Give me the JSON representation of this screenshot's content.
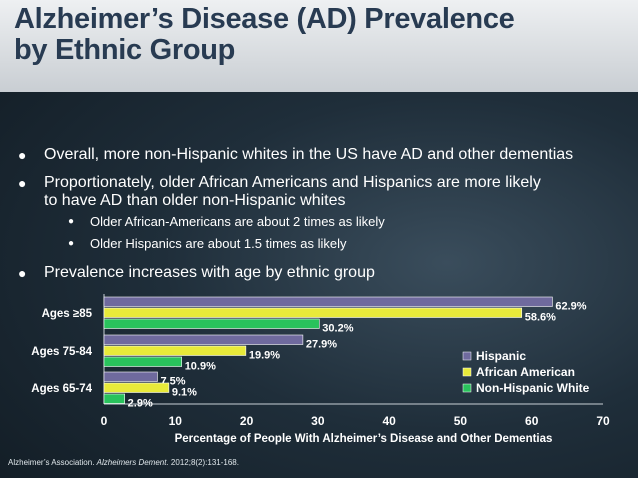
{
  "title_lines": [
    "Alzheimer’s Disease (AD) Prevalence",
    "by Ethnic Group"
  ],
  "bullets": [
    {
      "text": "Overall, more non-Hispanic whites in the US have AD and other dementias"
    },
    {
      "text": "Proportionately, older African Americans and Hispanics are more likely",
      "cont": "to have AD than older non-Hispanic whites"
    },
    {
      "sub": "Older African-Americans are about 2 times as likely"
    },
    {
      "sub": "Older Hispanics are about 1.5 times as likely"
    },
    {
      "text": "Prevalence increases with age by ethnic group"
    }
  ],
  "chart_data": {
    "type": "bar",
    "orientation": "horizontal",
    "categories": [
      "Ages ≥85",
      "Ages 75-84",
      "Ages 65-74"
    ],
    "series": [
      {
        "name": "Hispanic",
        "values": [
          62.9,
          27.9,
          7.5
        ],
        "labels": [
          "62.9%",
          "27.9%",
          "7.5%"
        ],
        "color": "#6f6a9e"
      },
      {
        "name": "African American",
        "values": [
          58.6,
          19.9,
          9.1
        ],
        "labels": [
          "58.6%",
          "19.9%",
          "9.1%"
        ],
        "color": "#e8ea3a"
      },
      {
        "name": "Non-Hispanic White",
        "values": [
          30.2,
          10.9,
          2.9
        ],
        "labels": [
          "30.2%",
          "10.9%",
          "2.9%"
        ],
        "color": "#29c25c"
      }
    ],
    "xlabel": "Percentage of People With Alzheimer’s Disease and Other Dementias",
    "xlim": [
      0,
      70
    ],
    "xticks": [
      "0",
      "10",
      "20",
      "30",
      "40",
      "50",
      "60",
      "70"
    ],
    "legend_position": "bottom-right"
  },
  "footer": {
    "org": "Alzheimer’s Association.",
    "journal": "Alzheimers Dement.",
    "ref": "2012;8(2):131-168."
  }
}
